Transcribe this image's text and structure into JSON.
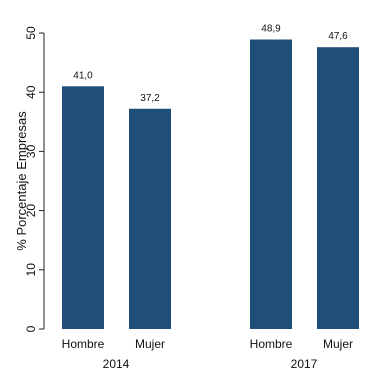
{
  "chart_data": {
    "type": "bar",
    "ylabel": "% Porcentaje Empresas",
    "ylim": [
      0,
      50
    ],
    "yticks": [
      "0",
      "10",
      "20",
      "30",
      "40",
      "50"
    ],
    "groups": [
      {
        "label": "2014",
        "bars": [
          {
            "category": "Hombre",
            "value": 41.0,
            "label": "41,0"
          },
          {
            "category": "Mujer",
            "value": 37.2,
            "label": "37,2"
          }
        ]
      },
      {
        "label": "2017",
        "bars": [
          {
            "category": "Hombre",
            "value": 48.9,
            "label": "48,9"
          },
          {
            "category": "Mujer",
            "value": 47.6,
            "label": "47,6"
          }
        ]
      }
    ],
    "bar_color": "#1f4e79",
    "grid": false,
    "legend": "none"
  }
}
